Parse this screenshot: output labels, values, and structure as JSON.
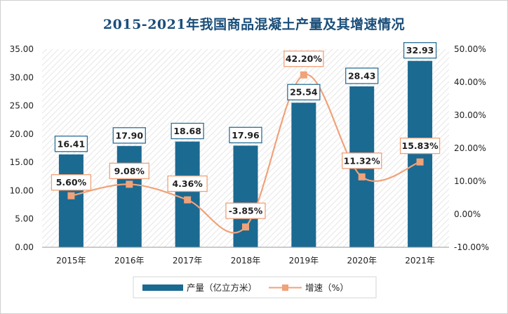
{
  "chart_data": {
    "type": "bar",
    "title": "2015-2021年我国商品混凝土产量及其增速情况",
    "categories": [
      "2015年",
      "2016年",
      "2017年",
      "2018年",
      "2019年",
      "2020年",
      "2021年"
    ],
    "series": [
      {
        "name": "产量（亿立方米）",
        "type": "bar",
        "axis": "left",
        "values": [
          16.41,
          17.9,
          18.68,
          17.96,
          25.54,
          28.43,
          32.93
        ],
        "labels": [
          "16.41",
          "17.90",
          "18.68",
          "17.96",
          "25.54",
          "28.43",
          "32.93"
        ]
      },
      {
        "name": "增速（%）",
        "type": "line",
        "axis": "right",
        "values": [
          5.6,
          9.08,
          4.36,
          -3.85,
          42.2,
          11.32,
          15.83
        ],
        "labels": [
          "5.60%",
          "9.08%",
          "4.36%",
          "-3.85%",
          "42.20%",
          "11.32%",
          "15.83%"
        ]
      }
    ],
    "y_left": {
      "range": [
        0,
        35
      ],
      "ticks": [
        "0.00",
        "5.00",
        "10.00",
        "15.00",
        "20.00",
        "25.00",
        "30.00",
        "35.00"
      ]
    },
    "y_right": {
      "range": [
        -10,
        50
      ],
      "ticks": [
        "-10.00%",
        "0.00%",
        "10.00%",
        "20.00%",
        "30.00%",
        "40.00%",
        "50.00%"
      ]
    },
    "legend_position": "bottom",
    "grid": false,
    "colors": {
      "bar": "#1b6a92",
      "line": "#f0a279",
      "title": "#1a4e7a"
    }
  }
}
